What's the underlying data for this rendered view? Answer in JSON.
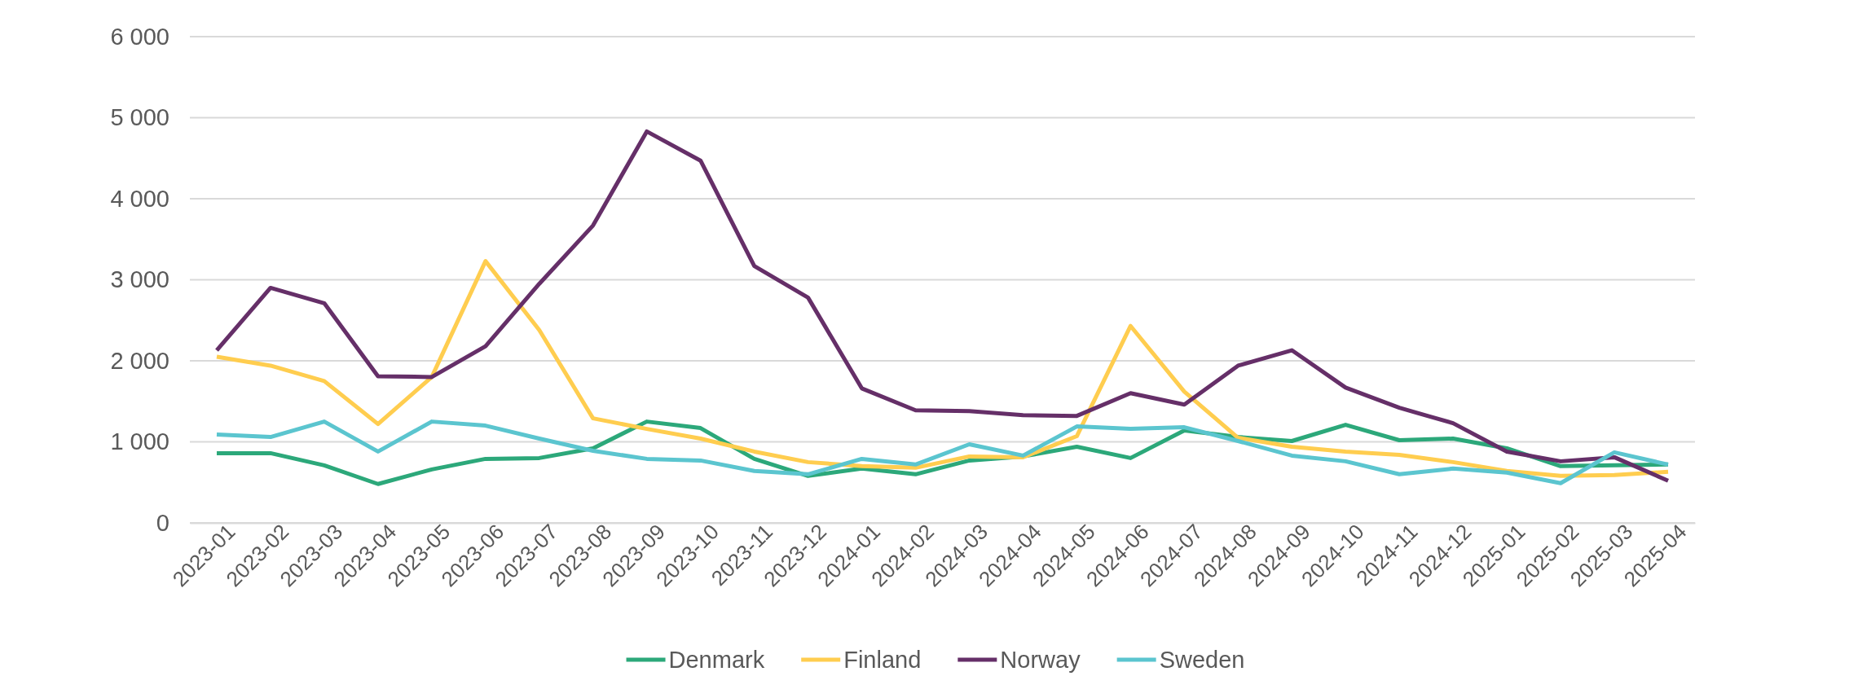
{
  "chart_data": {
    "type": "line",
    "categories": [
      "2023-01",
      "2023-02",
      "2023-03",
      "2023-04",
      "2023-05",
      "2023-06",
      "2023-07",
      "2023-08",
      "2023-09",
      "2023-10",
      "2023-11",
      "2023-12",
      "2024-01",
      "2024-02",
      "2024-03",
      "2024-04",
      "2024-05",
      "2024-06",
      "2024-07",
      "2024-08",
      "2024-09",
      "2024-10",
      "2024-11",
      "2024-12",
      "2025-01",
      "2025-02",
      "2025-03",
      "2025-04"
    ],
    "series": [
      {
        "name": "Denmark",
        "color": "#2ca87a",
        "values": [
          860,
          860,
          710,
          480,
          660,
          790,
          800,
          920,
          1250,
          1170,
          790,
          580,
          670,
          600,
          770,
          820,
          940,
          800,
          1140,
          1060,
          1010,
          1210,
          1020,
          1040,
          920,
          700,
          710,
          720
        ]
      },
      {
        "name": "Finland",
        "color": "#ffcd4f",
        "values": [
          2050,
          1940,
          1750,
          1220,
          1800,
          3230,
          2380,
          1290,
          1160,
          1040,
          880,
          750,
          700,
          680,
          820,
          810,
          1070,
          2430,
          1620,
          1050,
          940,
          880,
          840,
          750,
          640,
          580,
          590,
          630
        ]
      },
      {
        "name": "Norway",
        "color": "#652f68",
        "values": [
          2130,
          2900,
          2710,
          1810,
          1800,
          2180,
          2950,
          3670,
          4830,
          4470,
          3170,
          2780,
          1660,
          1390,
          1380,
          1330,
          1320,
          1600,
          1460,
          1940,
          2130,
          1670,
          1420,
          1230,
          880,
          760,
          810,
          520
        ]
      },
      {
        "name": "Sweden",
        "color": "#5bc5cf",
        "values": [
          1090,
          1060,
          1250,
          880,
          1250,
          1200,
          1040,
          890,
          790,
          770,
          640,
          600,
          790,
          720,
          970,
          830,
          1190,
          1160,
          1180,
          1010,
          830,
          760,
          600,
          670,
          620,
          490,
          870,
          720
        ]
      }
    ],
    "ylim": [
      0,
      6000
    ],
    "yticks": [
      {
        "value": 0,
        "label": "0"
      },
      {
        "value": 1000,
        "label": "1 000"
      },
      {
        "value": 2000,
        "label": "2 000"
      },
      {
        "value": 3000,
        "label": "3 000"
      },
      {
        "value": 4000,
        "label": "4 000"
      },
      {
        "value": 5000,
        "label": "5 000"
      },
      {
        "value": 6000,
        "label": "6 000"
      }
    ],
    "grid": "y",
    "legend": "bottom",
    "marker": "none",
    "line_style": "solid"
  }
}
